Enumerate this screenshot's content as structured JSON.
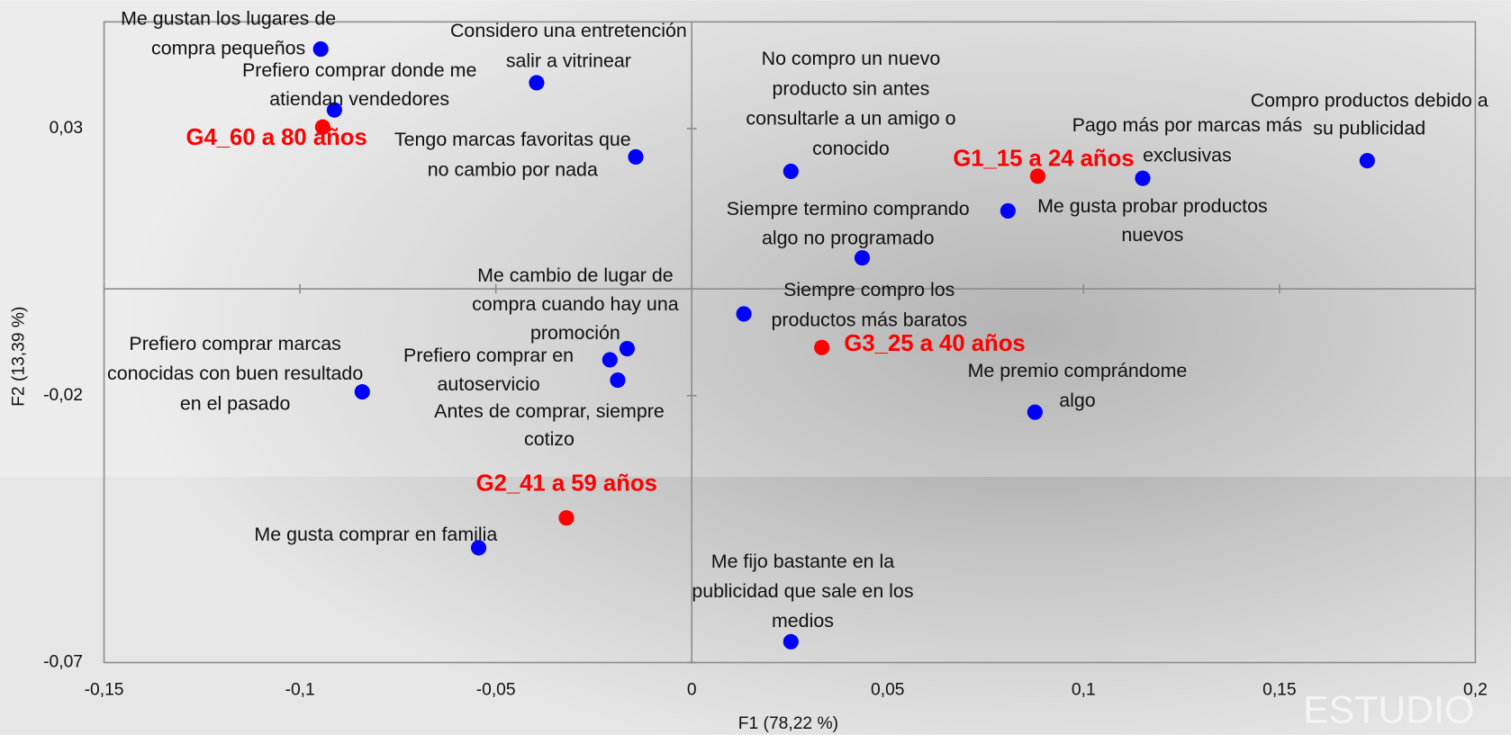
{
  "chart_data": {
    "type": "scatter",
    "xlabel": "F1 (78,22 %)",
    "ylabel": "F2 (13,39 %)",
    "watermark": "ESTUDIO",
    "xlim": [
      -0.15,
      0.2
    ],
    "ylim": [
      -0.07,
      0.05
    ],
    "xticks": [
      {
        "value": -0.15,
        "label": "-0,15"
      },
      {
        "value": -0.1,
        "label": "-0,1"
      },
      {
        "value": -0.05,
        "label": "-0,05"
      },
      0,
      {
        "value": 0.05,
        "label": "0,05"
      },
      {
        "value": 0.1,
        "label": "0,1"
      },
      {
        "value": 0.15,
        "label": "0,15"
      },
      {
        "value": 0.2,
        "label": "0,2"
      }
    ],
    "yticks": [
      {
        "value": -0.07,
        "label": "-0,07"
      },
      {
        "value": -0.02,
        "label": "-0,02"
      },
      {
        "value": 0.03,
        "label": "0,03"
      }
    ],
    "series": [
      {
        "color": "#0000ff",
        "x": [
          -0.0947,
          -0.0912,
          -0.0396,
          -0.0143,
          0.0253,
          0.1151,
          0.1724,
          0.0807,
          0.0435,
          0.0133,
          -0.0165,
          -0.0209,
          -0.0189,
          -0.0841,
          0.0876,
          -0.0544,
          0.0253
        ],
        "values": [
          0.0449,
          0.0335,
          0.0386,
          0.0247,
          0.022,
          0.0207,
          0.024,
          0.0146,
          0.0058,
          -0.0047,
          -0.0112,
          -0.0133,
          -0.0171,
          -0.0193,
          -0.0231,
          -0.0485,
          -0.0661
        ],
        "labels": [
          [
            "Me gustan los lugares de",
            "compra pequeños"
          ],
          [
            "Prefiero comprar donde me",
            "atiendan vendedores"
          ],
          [
            "Considero una entretención",
            "salir a vitrinear"
          ],
          [
            "Tengo marcas favoritas que",
            "no cambio por nada"
          ],
          [
            "No compro un nuevo",
            "producto sin antes",
            "consultarle a un amigo o",
            "conocido"
          ],
          [
            "Pago más por marcas más",
            "exclusivas"
          ],
          [
            "Compro productos debido a",
            "su publicidad"
          ],
          [
            "Me gusta probar productos",
            "nuevos"
          ],
          [
            "Siempre termino comprando",
            "algo no programado"
          ],
          [
            "Siempre compro los",
            "productos más baratos"
          ],
          [
            "Me cambio de lugar de",
            "compra cuando hay una",
            "promoción"
          ],
          [
            "Prefiero comprar en",
            "autoservicio"
          ],
          [
            "Antes de comprar, siempre",
            "cotizo"
          ],
          [
            "Prefiero comprar marcas",
            "conocidas con buen resultado",
            "en el pasado"
          ],
          [
            "Me premio comprándome",
            "algo"
          ],
          [
            "Me gusta comprar en familia"
          ],
          [
            "Me fijo bastante en la",
            "publicidad que sale en los",
            "medios"
          ]
        ]
      },
      {
        "color": "#ff0000",
        "x": [
          -0.0942,
          0.0883,
          0.0332,
          -0.032
        ],
        "values": [
          0.0303,
          0.0211,
          -0.011,
          -0.0429
        ],
        "labels": [
          [
            "G4_60 a 80 años"
          ],
          [
            "G1_15 a 24 años"
          ],
          [
            "G3_25 a 40 años"
          ],
          [
            "G2_41 a 59 años"
          ]
        ]
      }
    ]
  }
}
